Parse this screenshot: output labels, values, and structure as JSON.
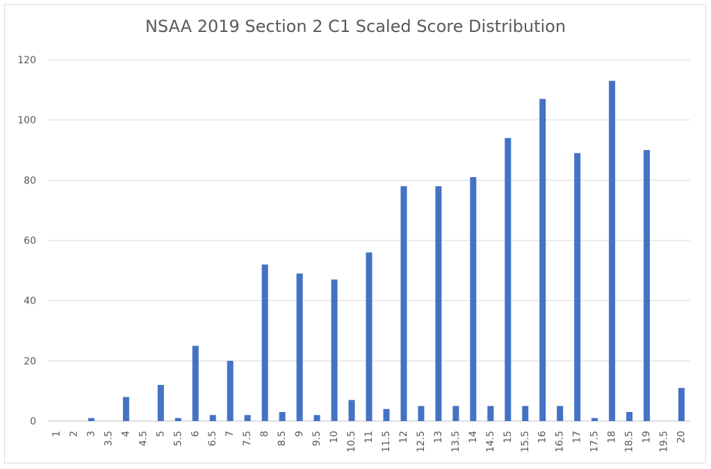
{
  "chart_data": {
    "type": "bar",
    "title": "NSAA 2019 Section 2 C1 Scaled Score Distribution",
    "xlabel": "",
    "ylabel": "",
    "ylim": [
      0,
      120
    ],
    "yticks": [
      0,
      20,
      40,
      60,
      80,
      100,
      120
    ],
    "grid": true,
    "legend": "none",
    "bar_color": "#4472c4",
    "categories": [
      "1",
      "2",
      "3",
      "3.5",
      "4",
      "4.5",
      "5",
      "5.5",
      "6",
      "6.5",
      "7",
      "7.5",
      "8",
      "8.5",
      "9",
      "9.5",
      "10",
      "10.5",
      "11",
      "11.5",
      "12",
      "12.5",
      "13",
      "13.5",
      "14",
      "14.5",
      "15",
      "15.5",
      "16",
      "16.5",
      "17",
      "17.5",
      "18",
      "18.5",
      "19",
      "19.5",
      "20"
    ],
    "values": [
      0,
      0,
      1,
      0,
      8,
      0,
      12,
      1,
      25,
      2,
      20,
      2,
      52,
      3,
      49,
      2,
      47,
      7,
      56,
      4,
      78,
      5,
      78,
      5,
      81,
      5,
      94,
      5,
      107,
      5,
      89,
      1,
      113,
      3,
      90,
      0,
      11
    ]
  }
}
